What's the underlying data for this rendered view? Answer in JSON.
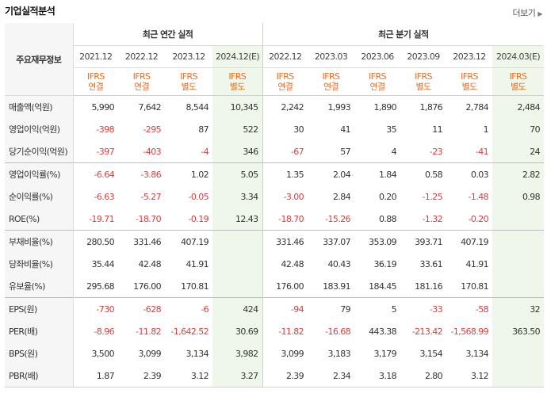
{
  "title": "기업실적분석",
  "more_label": "더보기",
  "more_icon": "chevron-right-icon",
  "metric_header": "주요재무정보",
  "group_annual": "최근 연간 실적",
  "group_quarterly": "최근 분기 실적",
  "columns": [
    {
      "period": "2021.12",
      "std": "IFRS",
      "basis": "연결",
      "estimate": false
    },
    {
      "period": "2022.12",
      "std": "IFRS",
      "basis": "연결",
      "estimate": false
    },
    {
      "period": "2023.12",
      "std": "IFRS",
      "basis": "별도",
      "estimate": false
    },
    {
      "period": "2024.12(E)",
      "std": "IFRS",
      "basis": "별도",
      "estimate": true
    },
    {
      "period": "2022.12",
      "std": "IFRS",
      "basis": "연결",
      "estimate": false
    },
    {
      "period": "2023.03",
      "std": "IFRS",
      "basis": "연결",
      "estimate": false
    },
    {
      "period": "2023.06",
      "std": "IFRS",
      "basis": "연결",
      "estimate": false
    },
    {
      "period": "2023.09",
      "std": "IFRS",
      "basis": "별도",
      "estimate": false
    },
    {
      "period": "2023.12",
      "std": "IFRS",
      "basis": "별도",
      "estimate": false
    },
    {
      "period": "2024.03(E)",
      "std": "IFRS",
      "basis": "별도",
      "estimate": true
    }
  ],
  "rows": [
    {
      "label": "매출액(억원)",
      "values": [
        "5,990",
        "7,642",
        "8,544",
        "10,345",
        "2,242",
        "1,993",
        "1,890",
        "1,876",
        "2,784",
        "2,484"
      ]
    },
    {
      "label": "영업이익(억원)",
      "values": [
        "-398",
        "-295",
        "87",
        "522",
        "30",
        "41",
        "35",
        "11",
        "1",
        "70"
      ]
    },
    {
      "label": "당기순이익(억원)",
      "values": [
        "-397",
        "-403",
        "-4",
        "346",
        "-67",
        "57",
        "4",
        "-23",
        "-41",
        "24"
      ]
    },
    {
      "label": "영업이익률(%)",
      "values": [
        "-6.64",
        "-3.86",
        "1.02",
        "5.05",
        "1.35",
        "2.04",
        "1.84",
        "0.58",
        "0.03",
        "2.82"
      ]
    },
    {
      "label": "순이익률(%)",
      "values": [
        "-6.63",
        "-5.27",
        "-0.05",
        "3.34",
        "-3.00",
        "2.84",
        "0.20",
        "-1.25",
        "-1.48",
        "0.98"
      ]
    },
    {
      "label": "ROE(%)",
      "values": [
        "-19.71",
        "-18.70",
        "-0.19",
        "12.43",
        "-18.70",
        "-15.26",
        "0.88",
        "-1.32",
        "-0.20",
        ""
      ]
    },
    {
      "label": "부채비율(%)",
      "values": [
        "280.50",
        "331.46",
        "407.19",
        "",
        "331.46",
        "337.07",
        "353.09",
        "393.71",
        "407.19",
        ""
      ]
    },
    {
      "label": "당좌비율(%)",
      "values": [
        "35.44",
        "42.48",
        "41.91",
        "",
        "42.48",
        "40.43",
        "36.19",
        "33.61",
        "41.91",
        ""
      ]
    },
    {
      "label": "유보율(%)",
      "values": [
        "295.68",
        "176.00",
        "170.81",
        "",
        "176.00",
        "183.91",
        "184.45",
        "181.16",
        "170.81",
        ""
      ]
    },
    {
      "label": "EPS(원)",
      "values": [
        "-730",
        "-628",
        "-6",
        "424",
        "-94",
        "79",
        "5",
        "-33",
        "-58",
        "32"
      ]
    },
    {
      "label": "PER(배)",
      "values": [
        "-8.96",
        "-11.82",
        "-1,642.52",
        "30.69",
        "-11.82",
        "-16.68",
        "443.38",
        "-213.42",
        "-1,568.99",
        "363.50"
      ]
    },
    {
      "label": "BPS(원)",
      "values": [
        "3,500",
        "3,099",
        "3,134",
        "3,982",
        "3,099",
        "3,183",
        "3,179",
        "3,154",
        "3,134",
        ""
      ]
    },
    {
      "label": "PBR(배)",
      "values": [
        "1.87",
        "2.39",
        "3.12",
        "3.27",
        "2.39",
        "2.34",
        "3.18",
        "2.80",
        "3.12",
        ""
      ]
    }
  ],
  "group_starts": [
    0,
    3,
    6,
    9
  ]
}
